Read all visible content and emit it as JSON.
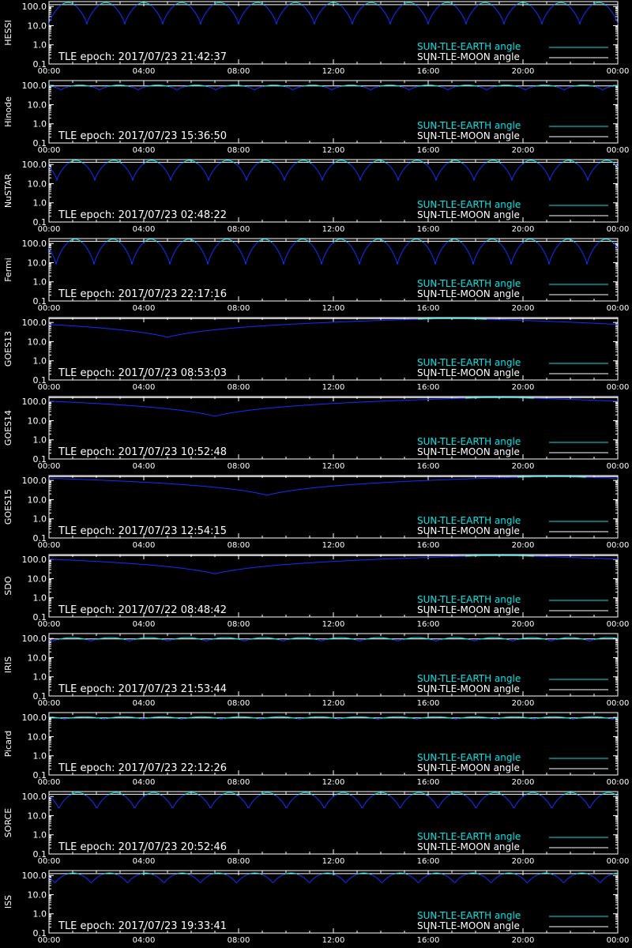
{
  "colors": {
    "background": "#000000",
    "axes": "#ffffff",
    "earth_angle": "#00e5e5",
    "moon_angle": "#ffffff",
    "curve_below": "#1030ff"
  },
  "chart_data": [
    {
      "type": "line",
      "ylabel": "HESSI",
      "epoch_text": "TLE epoch: 2017/07/23 21:42:37",
      "legend": [
        "SUN-TLE-EARTH angle",
        "SUN-TLE-MOON angle"
      ],
      "x_ticks": [
        "00:00",
        "04:00",
        "08:00",
        "12:00",
        "16:00",
        "20:00",
        "00:00"
      ],
      "y_ticks": [
        "100.0",
        "10.0",
        "1.0",
        "0.1"
      ],
      "ylim": [
        0.1,
        180
      ],
      "y_scale": "log",
      "moon_angle": 125,
      "earth_angle": {
        "shape": "periodic",
        "period_min": 96,
        "phase_min": 0,
        "min": 12,
        "max": 160
      }
    },
    {
      "type": "line",
      "ylabel": "Hinode",
      "epoch_text": "TLE epoch: 2017/07/23 15:36:50",
      "legend": [
        "SUN-TLE-EARTH angle",
        "SUN-TLE-MOON angle"
      ],
      "x_ticks": [
        "00:00",
        "04:00",
        "08:00",
        "12:00",
        "16:00",
        "20:00",
        "00:00"
      ],
      "y_ticks": [
        "100.0",
        "10.0",
        "1.0",
        "0.1"
      ],
      "ylim": [
        0.1,
        180
      ],
      "y_scale": "log",
      "moon_angle": 95,
      "earth_angle": {
        "shape": "periodic",
        "period_min": 98,
        "phase_min": 30,
        "min": 58,
        "max": 105
      }
    },
    {
      "type": "line",
      "ylabel": "NuSTAR",
      "epoch_text": "TLE epoch: 2017/07/23 02:48:22",
      "legend": [
        "SUN-TLE-EARTH angle",
        "SUN-TLE-MOON angle"
      ],
      "x_ticks": [
        "00:00",
        "04:00",
        "08:00",
        "12:00",
        "16:00",
        "20:00",
        "00:00"
      ],
      "y_ticks": [
        "100.0",
        "10.0",
        "1.0",
        "0.1"
      ],
      "ylim": [
        0.1,
        180
      ],
      "y_scale": "log",
      "moon_angle": 130,
      "earth_angle": {
        "shape": "periodic",
        "period_min": 96,
        "phase_min": 20,
        "min": 15,
        "max": 165
      }
    },
    {
      "type": "line",
      "ylabel": "Fermi",
      "epoch_text": "TLE epoch: 2017/07/23 22:17:16",
      "legend": [
        "SUN-TLE-EARTH angle",
        "SUN-TLE-MOON angle"
      ],
      "x_ticks": [
        "00:00",
        "04:00",
        "08:00",
        "12:00",
        "16:00",
        "20:00",
        "00:00"
      ],
      "y_ticks": [
        "100.0",
        "10.0",
        "1.0",
        "0.1"
      ],
      "ylim": [
        0.1,
        180
      ],
      "y_scale": "log",
      "moon_angle": 130,
      "earth_angle": {
        "shape": "periodic",
        "period_min": 96,
        "phase_min": 18,
        "min": 8,
        "max": 168
      }
    },
    {
      "type": "line",
      "ylabel": "GOES13",
      "epoch_text": "TLE epoch: 2017/07/23 08:53:03",
      "legend": [
        "SUN-TLE-EARTH angle",
        "SUN-TLE-MOON angle"
      ],
      "x_ticks": [
        "00:00",
        "04:00",
        "08:00",
        "12:00",
        "16:00",
        "20:00",
        "00:00"
      ],
      "y_ticks": [
        "100.0",
        "10.0",
        "1.0",
        "0.1"
      ],
      "ylim": [
        0.1,
        180
      ],
      "y_scale": "log",
      "moon_angle": 160,
      "earth_angle": {
        "shape": "geo",
        "min_time_h": 5.0,
        "min": 17,
        "max": 165
      }
    },
    {
      "type": "line",
      "ylabel": "GOES14",
      "epoch_text": "TLE epoch: 2017/07/23 10:52:48",
      "legend": [
        "SUN-TLE-EARTH angle",
        "SUN-TLE-MOON angle"
      ],
      "x_ticks": [
        "00:00",
        "04:00",
        "08:00",
        "12:00",
        "16:00",
        "20:00",
        "00:00"
      ],
      "y_ticks": [
        "100.0",
        "10.0",
        "1.0",
        "0.1"
      ],
      "ylim": [
        0.1,
        180
      ],
      "y_scale": "log",
      "moon_angle": 160,
      "earth_angle": {
        "shape": "geo",
        "min_time_h": 7.0,
        "min": 17,
        "max": 165
      }
    },
    {
      "type": "line",
      "ylabel": "GOES15",
      "epoch_text": "TLE epoch: 2017/07/23 12:54:15",
      "legend": [
        "SUN-TLE-EARTH angle",
        "SUN-TLE-MOON angle"
      ],
      "x_ticks": [
        "00:00",
        "04:00",
        "08:00",
        "12:00",
        "16:00",
        "20:00",
        "00:00"
      ],
      "y_ticks": [
        "100.0",
        "10.0",
        "1.0",
        "0.1"
      ],
      "ylim": [
        0.1,
        180
      ],
      "y_scale": "log",
      "moon_angle": 160,
      "earth_angle": {
        "shape": "geo",
        "min_time_h": 9.2,
        "min": 17,
        "max": 165
      }
    },
    {
      "type": "line",
      "ylabel": "SDO",
      "epoch_text": "TLE epoch: 2017/07/22 08:48:42",
      "legend": [
        "SUN-TLE-EARTH angle",
        "SUN-TLE-MOON angle"
      ],
      "x_ticks": [
        "00:00",
        "04:00",
        "08:00",
        "12:00",
        "16:00",
        "20:00",
        "00:00"
      ],
      "y_ticks": [
        "100.0",
        "10.0",
        "1.0",
        "0.1"
      ],
      "ylim": [
        0.1,
        180
      ],
      "y_scale": "log",
      "moon_angle": 160,
      "earth_angle": {
        "shape": "geo",
        "min_time_h": 7.0,
        "min": 18,
        "max": 165
      }
    },
    {
      "type": "line",
      "ylabel": "IRIS",
      "epoch_text": "TLE epoch: 2017/07/23 21:53:44",
      "legend": [
        "SUN-TLE-EARTH angle",
        "SUN-TLE-MOON angle"
      ],
      "x_ticks": [
        "00:00",
        "04:00",
        "08:00",
        "12:00",
        "16:00",
        "20:00",
        "00:00"
      ],
      "y_ticks": [
        "100.0",
        "10.0",
        "1.0",
        "0.1"
      ],
      "ylim": [
        0.1,
        180
      ],
      "y_scale": "log",
      "moon_angle": 95,
      "earth_angle": {
        "shape": "periodic",
        "period_min": 97,
        "phase_min": 10,
        "min": 72,
        "max": 110
      }
    },
    {
      "type": "line",
      "ylabel": "Picard",
      "epoch_text": "TLE epoch: 2017/07/23 22:12:26",
      "legend": [
        "SUN-TLE-EARTH angle",
        "SUN-TLE-MOON angle"
      ],
      "x_ticks": [
        "00:00",
        "04:00",
        "08:00",
        "12:00",
        "16:00",
        "20:00",
        "00:00"
      ],
      "y_ticks": [
        "100.0",
        "10.0",
        "1.0",
        "0.1"
      ],
      "ylim": [
        0.1,
        180
      ],
      "y_scale": "log",
      "moon_angle": 95,
      "earth_angle": {
        "shape": "periodic",
        "period_min": 99,
        "phase_min": 40,
        "min": 80,
        "max": 108
      }
    },
    {
      "type": "line",
      "ylabel": "SORCE",
      "epoch_text": "TLE epoch: 2017/07/23 20:52:46",
      "legend": [
        "SUN-TLE-EARTH angle",
        "SUN-TLE-MOON angle"
      ],
      "x_ticks": [
        "00:00",
        "04:00",
        "08:00",
        "12:00",
        "16:00",
        "20:00",
        "00:00"
      ],
      "y_ticks": [
        "100.0",
        "10.0",
        "1.0",
        "0.1"
      ],
      "ylim": [
        0.1,
        180
      ],
      "y_scale": "log",
      "moon_angle": 130,
      "earth_angle": {
        "shape": "periodic",
        "period_min": 96,
        "phase_min": 25,
        "min": 22,
        "max": 160
      }
    },
    {
      "type": "line",
      "ylabel": "ISS",
      "epoch_text": "TLE epoch: 2017/07/23 19:33:41",
      "legend": [
        "SUN-TLE-EARTH angle",
        "SUN-TLE-MOON angle"
      ],
      "x_ticks": [
        "00:00",
        "04:00",
        "08:00",
        "12:00",
        "16:00",
        "20:00",
        "00:00"
      ],
      "y_ticks": [
        "100.0",
        "10.0",
        "1.0",
        "0.1"
      ],
      "ylim": [
        0.1,
        180
      ],
      "y_scale": "log",
      "moon_angle": 125,
      "earth_angle": {
        "shape": "periodic",
        "period_min": 92,
        "phase_min": 15,
        "min": 38,
        "max": 135
      }
    }
  ]
}
